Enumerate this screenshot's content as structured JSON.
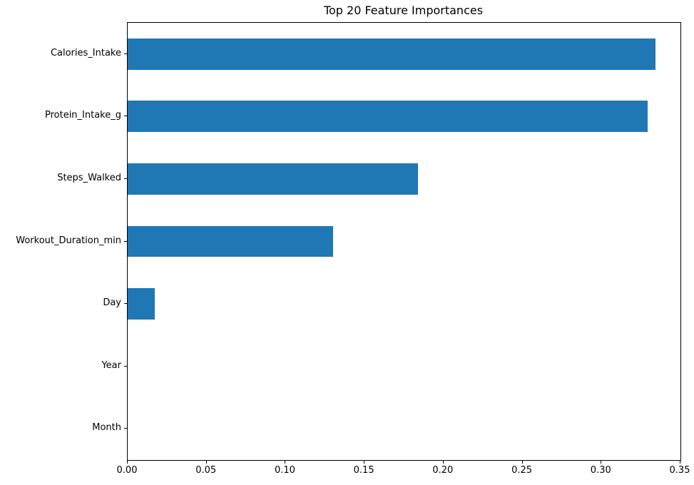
{
  "chart_data": {
    "type": "bar",
    "orientation": "horizontal",
    "title": "Top 20 Feature Importances",
    "xlabel": "",
    "ylabel": "",
    "categories": [
      "Calories_Intake",
      "Protein_Intake_g",
      "Steps_Walked",
      "Workout_Duration_min",
      "Day",
      "Year",
      "Month"
    ],
    "values": [
      0.334,
      0.329,
      0.184,
      0.13,
      0.017,
      0.0,
      0.0
    ],
    "category_order": "top-to-bottom",
    "xlim": [
      0.0,
      0.35
    ],
    "xticks": [
      0.0,
      0.05,
      0.1,
      0.15,
      0.2,
      0.25,
      0.3,
      0.35
    ],
    "xtick_labels": [
      "0.00",
      "0.05",
      "0.10",
      "0.15",
      "0.20",
      "0.25",
      "0.30",
      "0.35"
    ],
    "bar_color": "#1f77b4",
    "text_color": "#000000",
    "spine_color": "#000000",
    "background_color": "#ffffff",
    "grid": false,
    "legend": false,
    "bar_width_fraction": 0.5
  }
}
